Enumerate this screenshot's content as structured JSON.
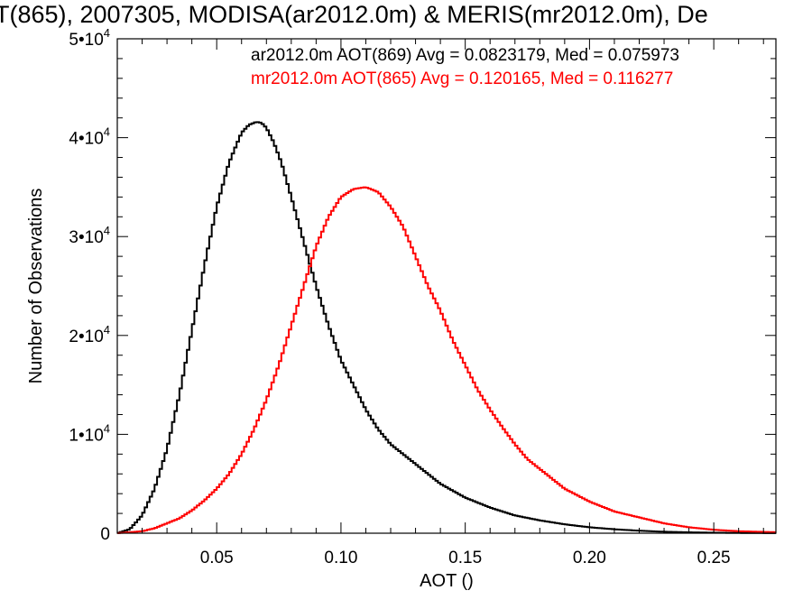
{
  "chart_data": {
    "type": "line",
    "title": "T(865), 2007305, MODISA(ar2012.0m) & MERIS(mr2012.0m), De",
    "xlabel": "AOT ()",
    "ylabel": "Number of Observations",
    "xlim": [
      0.01,
      0.275
    ],
    "ylim": [
      0,
      50000
    ],
    "x_ticks": [
      {
        "value": 0.05,
        "label": "0.05"
      },
      {
        "value": 0.1,
        "label": "0.10"
      },
      {
        "value": 0.15,
        "label": "0.15"
      },
      {
        "value": 0.2,
        "label": "0.20"
      },
      {
        "value": 0.25,
        "label": "0.25"
      }
    ],
    "y_ticks": [
      {
        "value": 0,
        "label": "0",
        "sup": ""
      },
      {
        "value": 10000,
        "label": "1•10",
        "sup": "4"
      },
      {
        "value": 20000,
        "label": "2•10",
        "sup": "4"
      },
      {
        "value": 30000,
        "label": "3•10",
        "sup": "4"
      },
      {
        "value": 40000,
        "label": "4•10",
        "sup": "4"
      },
      {
        "value": 50000,
        "label": "5•10",
        "sup": "4"
      }
    ],
    "annotations": [
      {
        "text": "ar2012.0m AOT(869) Avg = 0.0823179, Med = 0.075973",
        "color": "#000000"
      },
      {
        "text": "mr2012.0m AOT(865) Avg = 0.120165, Med = 0.116277",
        "color": "#ff0000"
      }
    ],
    "series": [
      {
        "color": "#000000",
        "x": [
          0.01,
          0.015,
          0.02,
          0.025,
          0.03,
          0.035,
          0.04,
          0.045,
          0.05,
          0.055,
          0.06,
          0.063,
          0.066,
          0.068,
          0.07,
          0.073,
          0.076,
          0.08,
          0.085,
          0.09,
          0.095,
          0.1,
          0.105,
          0.11,
          0.115,
          0.12,
          0.125,
          0.13,
          0.14,
          0.15,
          0.16,
          0.17,
          0.18,
          0.19,
          0.2,
          0.21,
          0.22,
          0.23,
          0.24,
          0.25,
          0.26,
          0.275
        ],
        "values": [
          0,
          400,
          1800,
          4500,
          8500,
          14000,
          20500,
          27000,
          33000,
          37500,
          40500,
          41300,
          41600,
          41500,
          41000,
          39500,
          37500,
          34000,
          29500,
          25000,
          21000,
          17500,
          15000,
          12500,
          10500,
          9000,
          8000,
          7000,
          5000,
          3600,
          2600,
          1800,
          1300,
          900,
          600,
          400,
          250,
          150,
          90,
          50,
          30,
          10
        ]
      },
      {
        "color": "#ff0000",
        "x": [
          0.01,
          0.02,
          0.025,
          0.03,
          0.035,
          0.04,
          0.045,
          0.05,
          0.055,
          0.06,
          0.065,
          0.07,
          0.075,
          0.08,
          0.085,
          0.09,
          0.095,
          0.1,
          0.105,
          0.11,
          0.115,
          0.12,
          0.125,
          0.13,
          0.135,
          0.14,
          0.145,
          0.15,
          0.155,
          0.16,
          0.165,
          0.17,
          0.175,
          0.18,
          0.19,
          0.2,
          0.21,
          0.22,
          0.23,
          0.24,
          0.25,
          0.26,
          0.275
        ],
        "values": [
          0,
          200,
          500,
          1000,
          1500,
          2300,
          3300,
          4500,
          6000,
          8000,
          10500,
          13500,
          17000,
          21000,
          25000,
          29000,
          32000,
          34000,
          34800,
          35000,
          34500,
          33000,
          31000,
          28000,
          25000,
          22500,
          19500,
          17000,
          14500,
          12500,
          10700,
          9000,
          7500,
          6500,
          4500,
          3200,
          2200,
          1600,
          1000,
          600,
          350,
          200,
          100
        ]
      }
    ]
  }
}
